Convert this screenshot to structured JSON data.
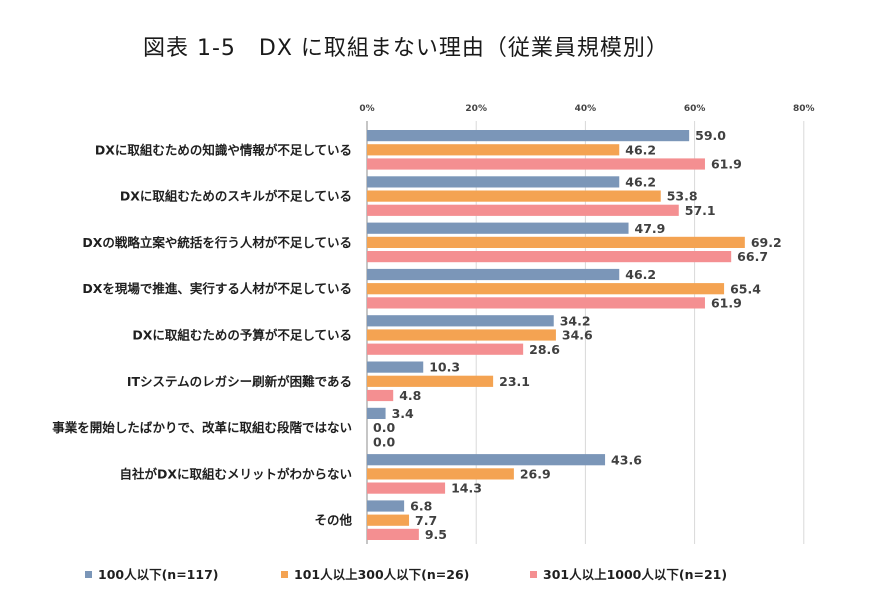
{
  "chart_data": {
    "type": "bar",
    "orientation": "horizontal",
    "title": "図表 1-5　DX に取組まない理由（従業員規模別）",
    "x_ticks": [
      "0%",
      "20%",
      "40%",
      "60%",
      "80%"
    ],
    "xlim": [
      0,
      80
    ],
    "grid": true,
    "legend_position": "bottom",
    "categories": [
      "DXに取組むための知識や情報が不足している",
      "DXに取組むためのスキルが不足している",
      "DXの戦略立案や統括を行う人材が不足している",
      "DXを現場で推進、実行する人材が不足している",
      "DXに取組むための予算が不足している",
      "ITシステムのレガシー刷新が困難である",
      "事業を開始したばかりで、改革に取組む段階ではない",
      "自社がDXに取組むメリットがわからない",
      "その他"
    ],
    "series": [
      {
        "name": "100人以下(n=117)",
        "color": "#7b96b8",
        "values": [
          59.0,
          46.2,
          47.9,
          46.2,
          34.2,
          10.3,
          3.4,
          43.6,
          6.8
        ]
      },
      {
        "name": "101人以上300人以下(n=26)",
        "color": "#f4a352",
        "values": [
          46.2,
          53.8,
          69.2,
          65.4,
          34.6,
          23.1,
          0.0,
          26.9,
          7.7
        ]
      },
      {
        "name": "301人以上1000人以下(n=21)",
        "color": "#f48f91",
        "values": [
          61.9,
          57.1,
          66.7,
          61.9,
          28.6,
          4.8,
          0.0,
          14.3,
          9.5
        ]
      }
    ]
  }
}
